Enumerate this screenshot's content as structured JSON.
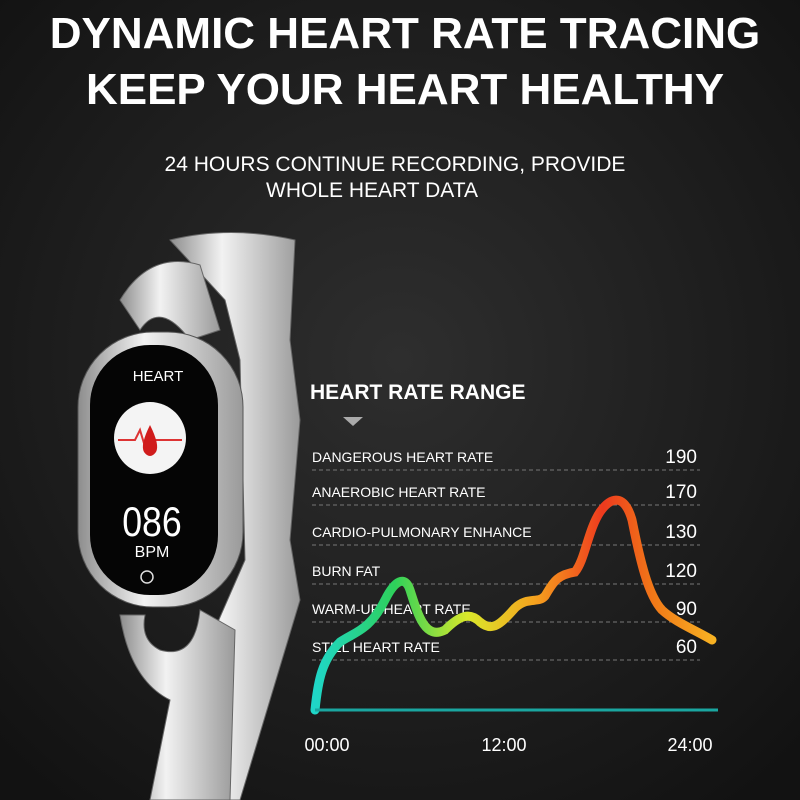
{
  "header": {
    "title_lines": [
      "DYNAMIC HEART RATE TRACING",
      "KEEP YOUR HEART HEALTHY"
    ],
    "subtitle_lines": [
      "24 HOURS CONTINUE RECORDING, PROVIDE",
      "WHOLE HEART DATA"
    ]
  },
  "watch": {
    "label": "HEART",
    "reading": "086",
    "unit": "BPM"
  },
  "range": {
    "title": "HEART RATE RANGE",
    "zones": [
      {
        "name": "DANGEROUS HEART RATE",
        "value": 190
      },
      {
        "name": "ANAEROBIC HEART RATE",
        "value": 170
      },
      {
        "name": "CARDIO-PULMONARY ENHANCE",
        "value": 130
      },
      {
        "name": "BURN FAT",
        "value": 120
      },
      {
        "name": "WARM-UP HEART RATE",
        "value": 90
      },
      {
        "name": "STILL HEART RATE",
        "value": 60
      }
    ],
    "time_labels": [
      "00:00",
      "12:00",
      "24:00"
    ]
  }
}
